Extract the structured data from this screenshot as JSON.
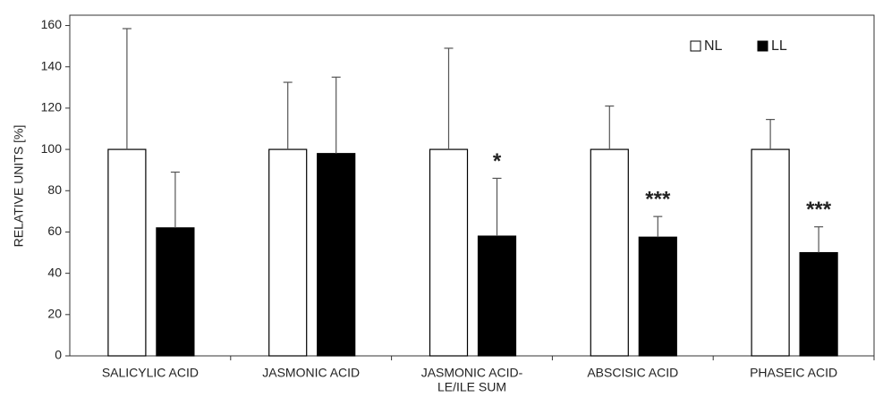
{
  "chart_data": {
    "type": "bar",
    "y_label": "RELATIVE UNITS [%]",
    "categories": [
      [
        "SALICYLIC ACID"
      ],
      [
        "JASMONIC ACID"
      ],
      [
        "JASMONIC ACID-",
        "LE/ILE SUM"
      ],
      [
        "ABSCISIC ACID"
      ],
      [
        "PHASEIC ACID"
      ]
    ],
    "series": [
      {
        "name": "NL",
        "color": "#ffffff",
        "values": [
          100,
          100,
          100,
          100,
          100
        ],
        "errors": [
          58.5,
          32.5,
          49,
          21,
          14.5
        ]
      },
      {
        "name": "LL",
        "color": "#000000",
        "values": [
          62,
          98,
          58,
          57.5,
          50
        ],
        "errors": [
          27,
          37,
          28,
          10,
          12.5
        ],
        "significance": [
          null,
          null,
          "*",
          "***",
          "***"
        ]
      }
    ],
    "ylim": [
      0,
      165
    ],
    "yticks": [
      0,
      20,
      40,
      60,
      80,
      100,
      120,
      140,
      160
    ],
    "legend": "top-right"
  }
}
